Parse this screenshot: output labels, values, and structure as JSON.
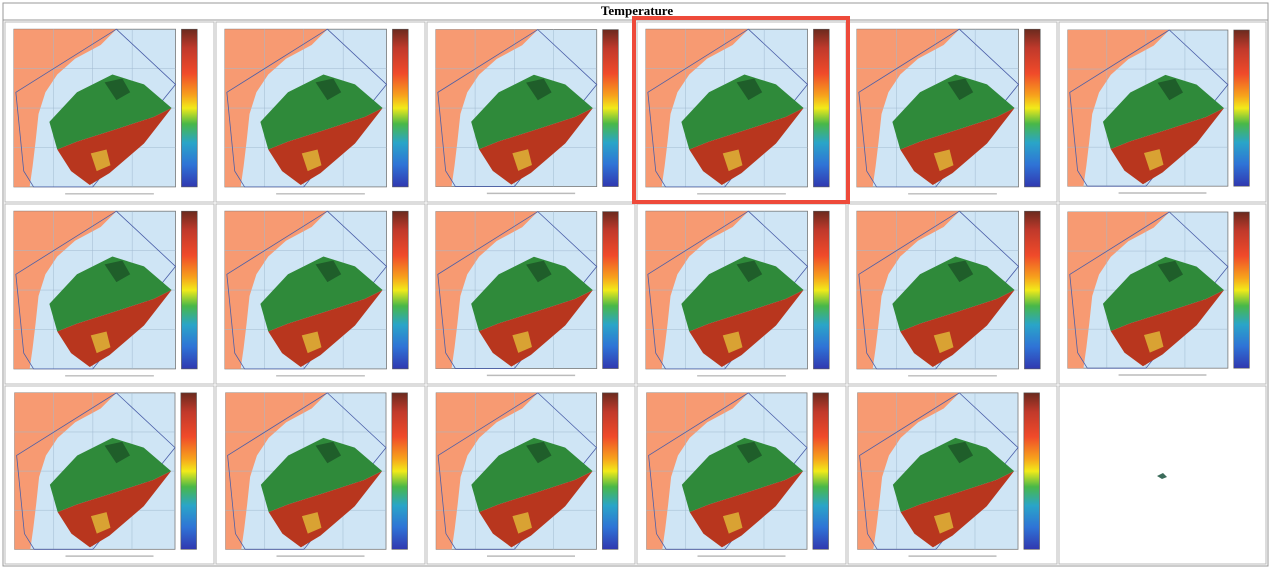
{
  "title": "Temperature"
}
